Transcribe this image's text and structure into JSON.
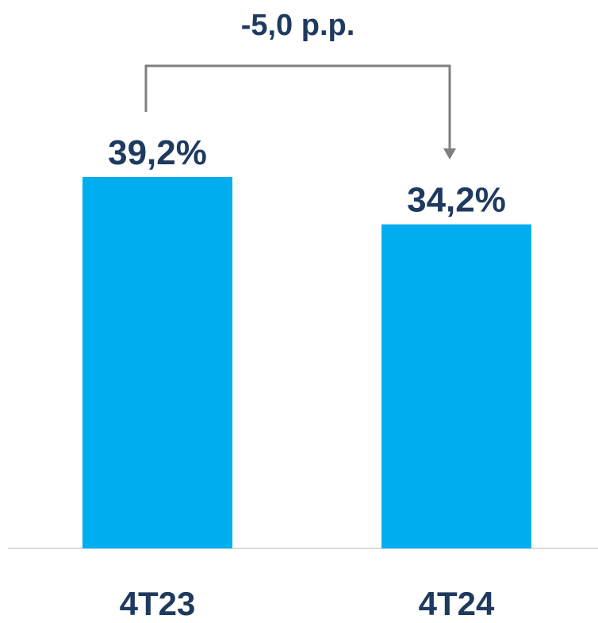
{
  "chart_data": {
    "type": "bar",
    "categories": [
      "4T23",
      "4T24"
    ],
    "values": [
      39.2,
      34.2
    ],
    "value_labels": [
      "39,2%",
      "34,2%"
    ],
    "title": "",
    "xlabel": "",
    "ylabel": "",
    "ylim": [
      0,
      39.2
    ],
    "grid": false,
    "legend": "none",
    "annotation": {
      "label": "-5,0 p.p.",
      "from_category": "4T23",
      "to_category": "4T24"
    }
  },
  "colors": {
    "bar": "#00AEEF",
    "text": "#1F3A5F",
    "axis": "#D9D9D9",
    "connector": "#7F7F7F"
  }
}
